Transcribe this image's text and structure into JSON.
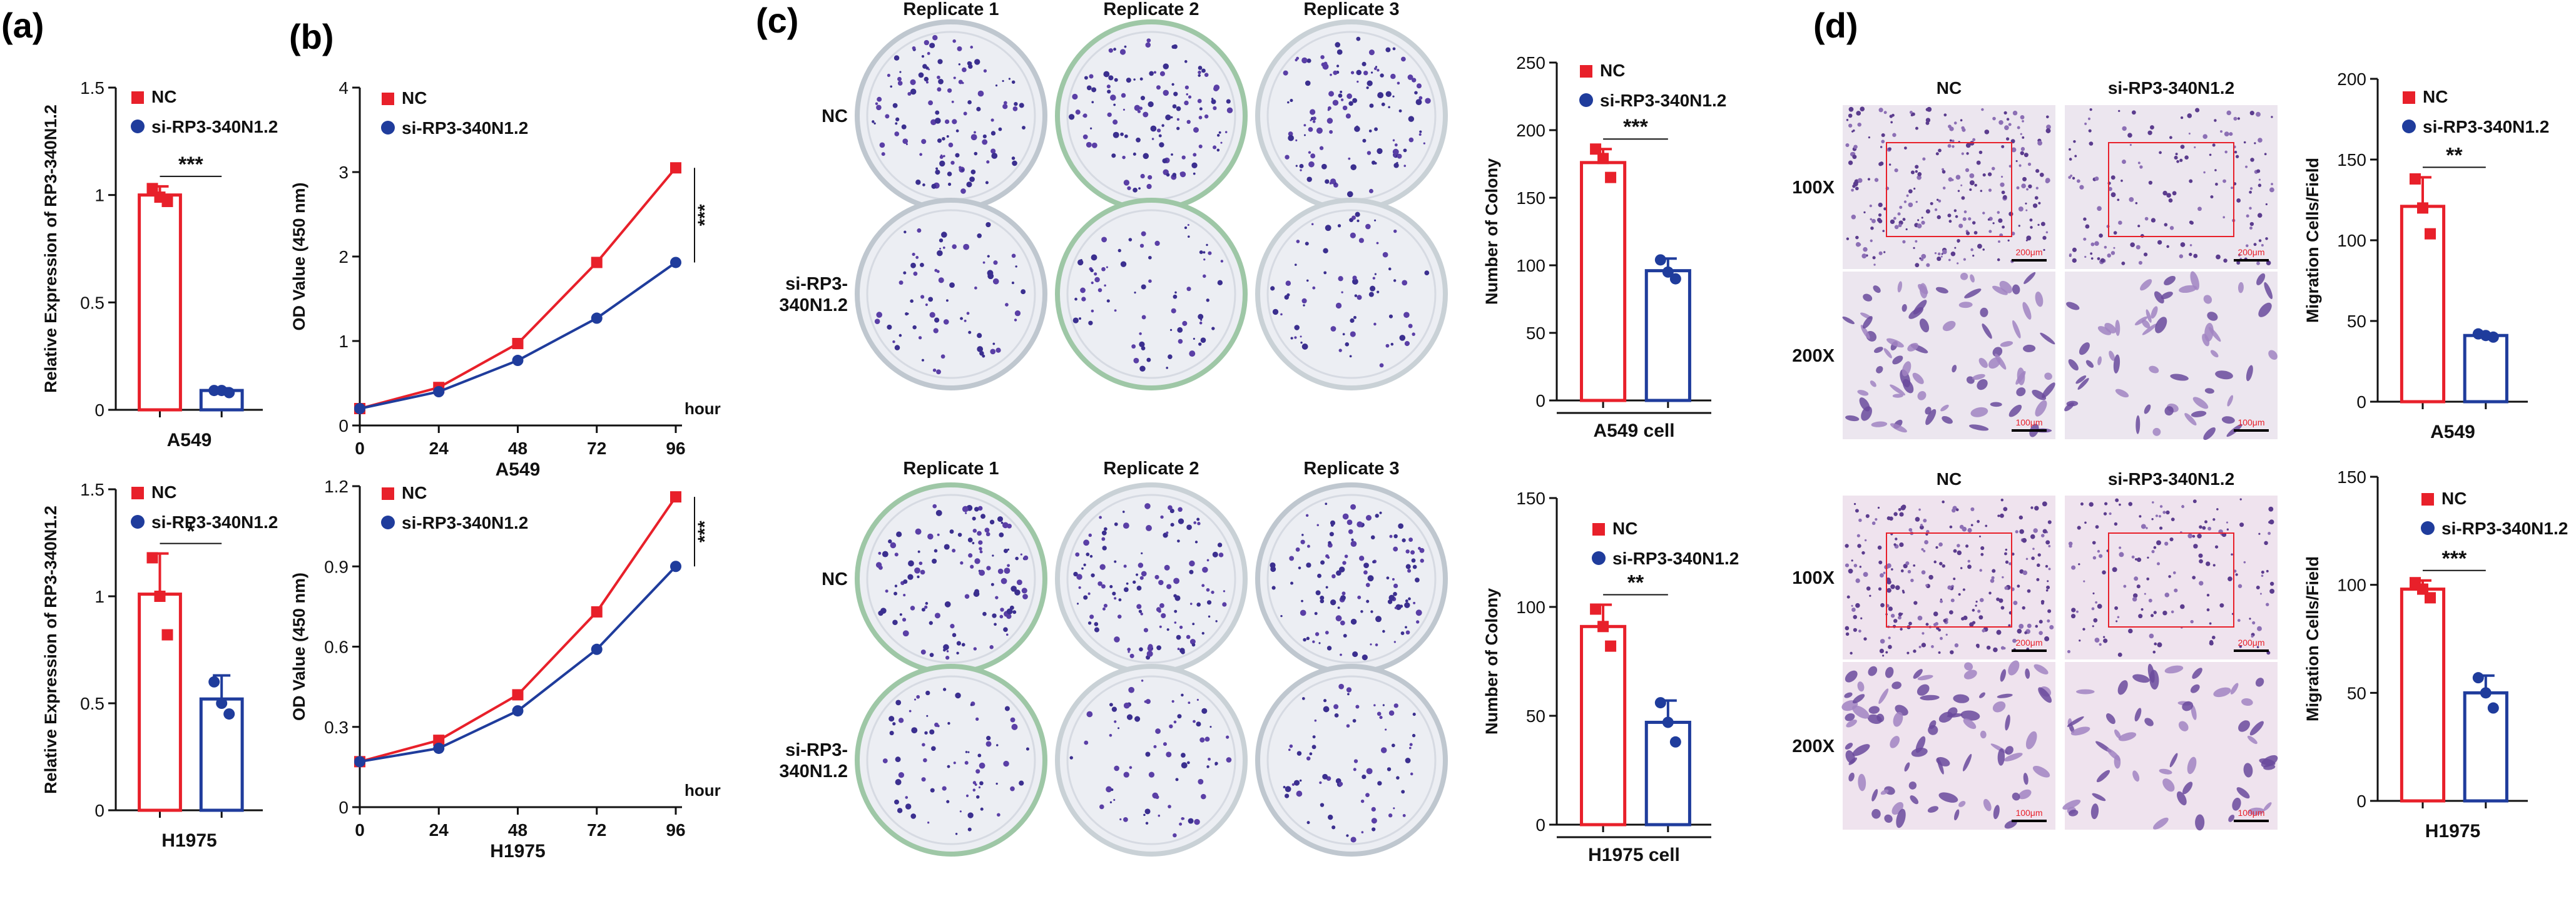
{
  "colors": {
    "nc": "#e8202a",
    "si": "#1f3c9c",
    "axis": "#111111"
  },
  "legend": {
    "nc": "NC",
    "si": "si-RP3-340N1.2"
  },
  "panels": {
    "a": {
      "label": "(a)"
    },
    "b": {
      "label": "(b)"
    },
    "c": {
      "label": "(c)",
      "replicates": [
        "Replicate 1",
        "Replicate 2",
        "Replicate 3"
      ],
      "rows": [
        "NC",
        "si-RP3-\n340N1.2"
      ]
    },
    "d": {
      "label": "(d)",
      "cols": [
        "NC",
        "si-RP3-340N1.2"
      ],
      "mags": [
        "100X",
        "200X"
      ],
      "scale": [
        "200μm",
        "100μm"
      ]
    }
  },
  "chart_data": [
    {
      "id": "a-top",
      "type": "bar",
      "title": "",
      "xlabel": "A549",
      "ylabel": "Relative Expression of RP3-340N1.2",
      "ylim": [
        0,
        1.5
      ],
      "yticks": [
        0,
        0.5,
        1,
        1.5
      ],
      "categories": [
        "NC",
        "si-RP3-340N1.2"
      ],
      "values": [
        1.0,
        0.09
      ],
      "errors": [
        0.04,
        0.01
      ],
      "points": [
        [
          1.03,
          0.99,
          0.97
        ],
        [
          0.09,
          0.09,
          0.08
        ]
      ],
      "significance": "***"
    },
    {
      "id": "a-bottom",
      "type": "bar",
      "title": "",
      "xlabel": "H1975",
      "ylabel": "Relative Expression of RP3-340N1.2",
      "ylim": [
        0,
        1.5
      ],
      "yticks": [
        0,
        0.5,
        1,
        1.5
      ],
      "categories": [
        "NC",
        "si-RP3-340N1.2"
      ],
      "values": [
        1.01,
        0.52
      ],
      "errors": [
        0.19,
        0.11
      ],
      "points": [
        [
          1.18,
          1.0,
          0.82
        ],
        [
          0.6,
          0.5,
          0.45
        ]
      ],
      "significance": "*"
    },
    {
      "id": "b-top",
      "type": "line",
      "title": "",
      "xlabel": "A549",
      "ylabel": "OD Value (450 nm)",
      "xunit": "hour",
      "x": [
        0,
        24,
        48,
        72,
        96
      ],
      "ylim": [
        0,
        4
      ],
      "yticks": [
        0,
        1,
        2,
        3,
        4
      ],
      "series": [
        {
          "name": "NC",
          "values": [
            0.2,
            0.45,
            0.97,
            1.93,
            3.05
          ]
        },
        {
          "name": "si-RP3-340N1.2",
          "values": [
            0.2,
            0.4,
            0.77,
            1.27,
            1.93
          ]
        }
      ],
      "significance": "***"
    },
    {
      "id": "b-bottom",
      "type": "line",
      "title": "",
      "xlabel": "H1975",
      "ylabel": "OD Value (450 nm)",
      "xunit": "hour",
      "x": [
        0,
        24,
        48,
        72,
        96
      ],
      "ylim": [
        0,
        1.2
      ],
      "yticks": [
        0,
        0.3,
        0.6,
        0.9,
        1.2
      ],
      "series": [
        {
          "name": "NC",
          "values": [
            0.17,
            0.25,
            0.42,
            0.73,
            1.16
          ]
        },
        {
          "name": "si-RP3-340N1.2",
          "values": [
            0.17,
            0.22,
            0.36,
            0.59,
            0.9
          ]
        }
      ],
      "significance": "***"
    },
    {
      "id": "c-top",
      "type": "bar",
      "title": "",
      "xlabel": "A549 cell",
      "ylabel": "Number of Colony",
      "ylim": [
        0,
        250
      ],
      "yticks": [
        0,
        50,
        100,
        150,
        200,
        250
      ],
      "categories": [
        "NC",
        "si-RP3-340N1.2"
      ],
      "values": [
        176,
        96
      ],
      "errors": [
        10,
        9
      ],
      "points": [
        [
          186,
          179,
          165
        ],
        [
          104,
          95,
          90
        ]
      ],
      "significance": "***"
    },
    {
      "id": "c-bottom",
      "type": "bar",
      "title": "",
      "xlabel": "H1975 cell",
      "ylabel": "Number of Colony",
      "ylim": [
        0,
        150
      ],
      "yticks": [
        0,
        50,
        100,
        150
      ],
      "categories": [
        "NC",
        "si-RP3-340N1.2"
      ],
      "values": [
        91,
        47
      ],
      "errors": [
        10,
        10
      ],
      "points": [
        [
          99,
          91,
          82
        ],
        [
          56,
          47,
          38
        ]
      ],
      "significance": "**"
    },
    {
      "id": "d-top",
      "type": "bar",
      "title": "",
      "xlabel": "A549",
      "ylabel": "Migration Cells/Field",
      "ylim": [
        0,
        200
      ],
      "yticks": [
        0,
        50,
        100,
        150,
        200
      ],
      "categories": [
        "NC",
        "si-RP3-340N1.2"
      ],
      "values": [
        121,
        41
      ],
      "errors": [
        18,
        1
      ],
      "points": [
        [
          138,
          120,
          104
        ],
        [
          42,
          41,
          40
        ]
      ],
      "significance": "**"
    },
    {
      "id": "d-bottom",
      "type": "bar",
      "title": "",
      "xlabel": "H1975",
      "ylabel": "Migration Cells/Field",
      "ylim": [
        0,
        150
      ],
      "yticks": [
        0,
        50,
        100,
        150
      ],
      "categories": [
        "NC",
        "si-RP3-340N1.2"
      ],
      "values": [
        98,
        50
      ],
      "errors": [
        4,
        8
      ],
      "points": [
        [
          101,
          98,
          94
        ],
        [
          57,
          50,
          43
        ]
      ],
      "significance": "***"
    }
  ]
}
